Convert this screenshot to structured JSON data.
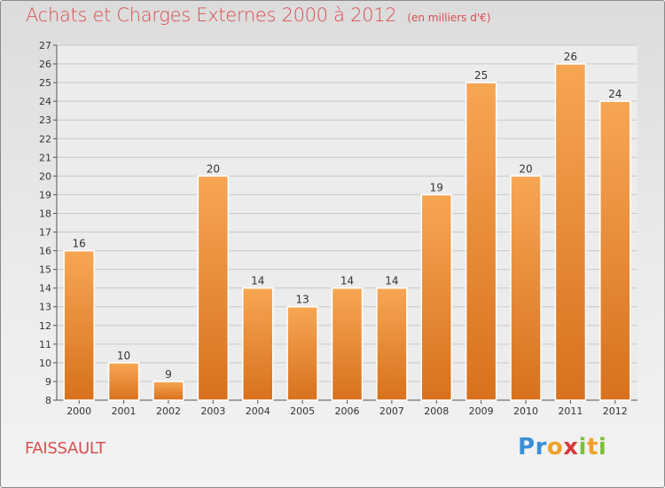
{
  "header": {
    "title": "Achats et Charges Externes 2000 à 2012",
    "unit": "(en milliers d'€)"
  },
  "footer": {
    "commune": "FAISSAULT",
    "logo_text": "Proxiti"
  },
  "colors": {
    "title": "#d94f4f",
    "bar_top": "#f7a654",
    "bar_bottom": "#d8711c",
    "grid": "#c9c9c9"
  },
  "chart_data": {
    "type": "bar",
    "title": "Achats et Charges Externes 2000 à 2012",
    "subtitle": "(en milliers d'€)",
    "xlabel": "",
    "ylabel": "",
    "categories": [
      "2000",
      "2001",
      "2002",
      "2003",
      "2004",
      "2005",
      "2006",
      "2007",
      "2008",
      "2009",
      "2010",
      "2011",
      "2012"
    ],
    "values": [
      16,
      10,
      9,
      20,
      14,
      13,
      14,
      14,
      19,
      25,
      20,
      26,
      24
    ],
    "ylim": [
      8,
      27
    ],
    "yticks": [
      8,
      9,
      10,
      11,
      12,
      13,
      14,
      15,
      16,
      17,
      18,
      19,
      20,
      21,
      22,
      23,
      24,
      25,
      26,
      27
    ],
    "grid": true,
    "data_labels": true
  }
}
